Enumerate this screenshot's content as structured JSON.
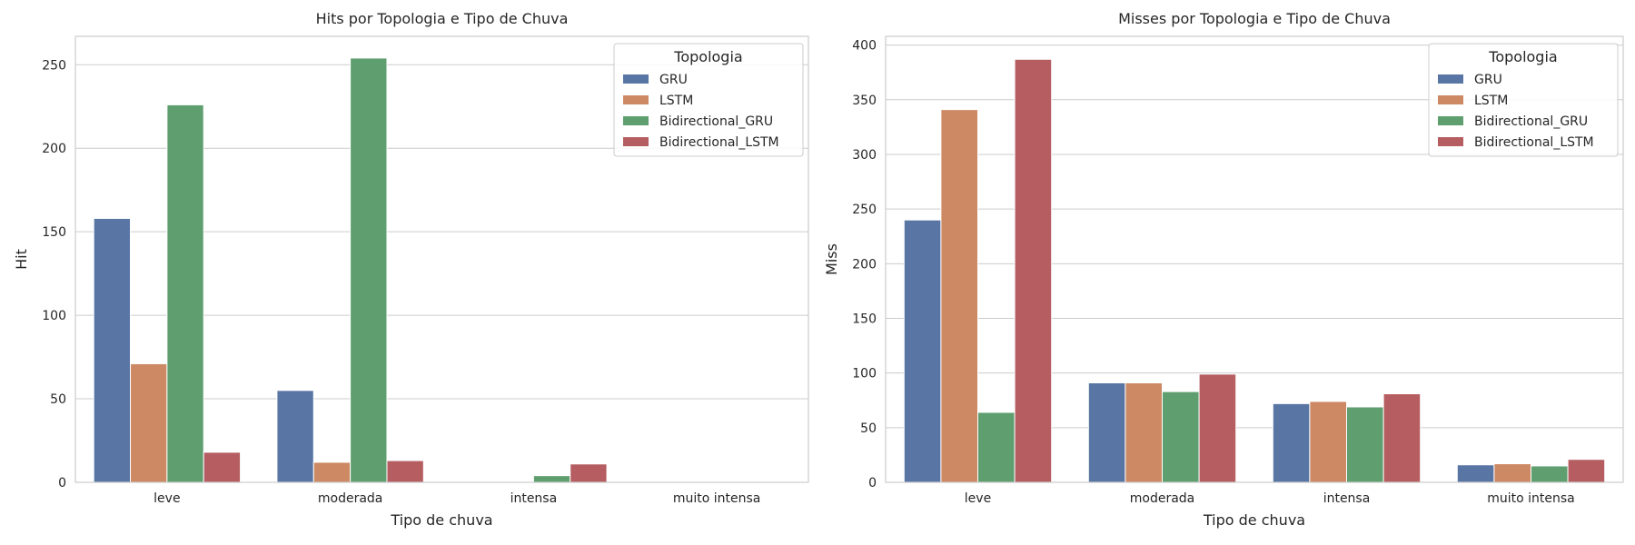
{
  "chart_data": [
    {
      "type": "bar",
      "title": "Hits por Topologia e Tipo de Chuva",
      "xlabel": "Tipo de chuva",
      "ylabel": "Hit",
      "categories": [
        "leve",
        "moderada",
        "intensa",
        "muito intensa"
      ],
      "ylim": [
        0,
        267
      ],
      "yticks": [
        0,
        50,
        100,
        150,
        200,
        250
      ],
      "grid": "horizontal",
      "legend_title": "Topologia",
      "legend_position": "top-right",
      "series": [
        {
          "name": "GRU",
          "color": "#5875a4",
          "values": [
            158,
            55,
            0,
            0
          ]
        },
        {
          "name": "LSTM",
          "color": "#cc8963",
          "values": [
            71,
            12,
            0,
            0
          ]
        },
        {
          "name": "Bidirectional_GRU",
          "color": "#5f9e6e",
          "values": [
            226,
            254,
            4,
            0
          ]
        },
        {
          "name": "Bidirectional_LSTM",
          "color": "#b55d60",
          "values": [
            18,
            13,
            11,
            0
          ]
        }
      ]
    },
    {
      "type": "bar",
      "title": "Misses por Topologia e Tipo de Chuva",
      "xlabel": "Tipo de chuva",
      "ylabel": "Miss",
      "categories": [
        "leve",
        "moderada",
        "intensa",
        "muito intensa"
      ],
      "ylim": [
        0,
        408
      ],
      "yticks": [
        0,
        50,
        100,
        150,
        200,
        250,
        300,
        350,
        400
      ],
      "grid": "horizontal",
      "legend_title": "Topologia",
      "legend_position": "top-right",
      "series": [
        {
          "name": "GRU",
          "color": "#5875a4",
          "values": [
            240,
            91,
            72,
            16
          ]
        },
        {
          "name": "LSTM",
          "color": "#cc8963",
          "values": [
            341,
            91,
            74,
            17
          ]
        },
        {
          "name": "Bidirectional_GRU",
          "color": "#5f9e6e",
          "values": [
            64,
            83,
            69,
            15
          ]
        },
        {
          "name": "Bidirectional_LSTM",
          "color": "#b55d60",
          "values": [
            387,
            99,
            81,
            21
          ]
        }
      ]
    }
  ]
}
